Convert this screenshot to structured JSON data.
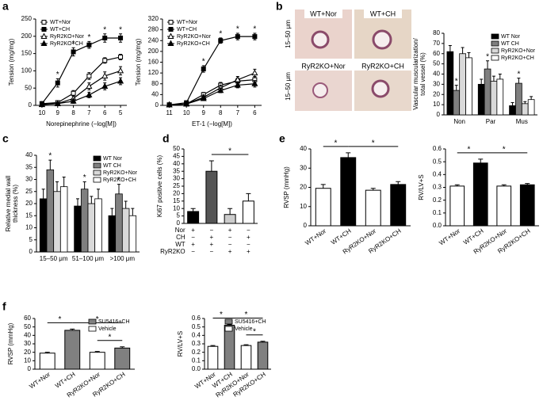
{
  "panel_labels": [
    "a",
    "b",
    "c",
    "d",
    "e",
    "f"
  ],
  "b_images": {
    "labels": [
      "WT+Nor",
      "WT+CH",
      "RyR2KO+Nor",
      "RyR2KO+CH"
    ],
    "row_labels": [
      "15–50 μm",
      "15–50 μm"
    ]
  },
  "chart_data": [
    {
      "type": "line",
      "x": [
        10,
        9,
        8,
        7,
        6,
        5
      ],
      "xlim": [
        10.4,
        4.6
      ],
      "xticks": [
        10,
        9,
        8,
        7,
        6,
        5
      ],
      "xlabel": "Norepinephrine (−log[M])",
      "ylabel": [
        "Tension (mg/mg)"
      ],
      "ylim": [
        0,
        250
      ],
      "yticks": [
        0,
        50,
        100,
        150,
        200,
        250
      ],
      "legend": "upper left",
      "series": [
        {
          "name": "WT+Nor",
          "color": "#000000",
          "marker": "square",
          "marker_fill": "#ffffff",
          "values": [
            5,
            8,
            35,
            85,
            130,
            140
          ],
          "errors": [
            5,
            5,
            8,
            10,
            8,
            8
          ]
        },
        {
          "name": "WT+CH",
          "color": "#000000",
          "marker": "square",
          "marker_fill": "#000000",
          "values": [
            5,
            65,
            155,
            175,
            195,
            195
          ],
          "errors": [
            5,
            12,
            12,
            10,
            12,
            12
          ]
        },
        {
          "name": "RyR2KO+Nor",
          "color": "#000000",
          "marker": "triangle",
          "marker_fill": "#ffffff",
          "values": [
            3,
            5,
            20,
            55,
            85,
            100
          ],
          "errors": [
            3,
            4,
            8,
            10,
            12,
            12
          ]
        },
        {
          "name": "RyR2KO+CH",
          "color": "#000000",
          "marker": "triangle",
          "marker_fill": "#000000",
          "values": [
            2,
            5,
            12,
            30,
            55,
            70
          ],
          "errors": [
            3,
            4,
            6,
            8,
            10,
            10
          ]
        }
      ],
      "significance": [
        {
          "series": 1,
          "index": 1,
          "label": "*"
        },
        {
          "series": 1,
          "index": 2,
          "label": "*"
        },
        {
          "series": 1,
          "index": 3,
          "label": "*"
        },
        {
          "series": 1,
          "index": 4,
          "label": "*"
        },
        {
          "series": 1,
          "index": 5,
          "label": "*"
        }
      ]
    },
    {
      "type": "line",
      "x": [
        11,
        10,
        9,
        8,
        7,
        6
      ],
      "xlim": [
        11.4,
        5.6
      ],
      "xticks": [
        11,
        10,
        9,
        8,
        7,
        6
      ],
      "xlabel": "ET-1 (−log[M])",
      "ylabel": [
        "Tension (mg/mg)"
      ],
      "ylim": [
        0,
        320
      ],
      "yticks": [
        0,
        40,
        80,
        120,
        160,
        200,
        240,
        280,
        320
      ],
      "legend": "upper left",
      "series": [
        {
          "name": "WT+Nor",
          "color": "#000000",
          "marker": "square",
          "marker_fill": "#ffffff",
          "values": [
            2,
            5,
            40,
            75,
            90,
            95
          ],
          "errors": [
            3,
            4,
            8,
            10,
            12,
            12
          ]
        },
        {
          "name": "WT+CH",
          "color": "#000000",
          "marker": "square",
          "marker_fill": "#000000",
          "values": [
            2,
            10,
            135,
            240,
            255,
            255
          ],
          "errors": [
            3,
            5,
            12,
            10,
            12,
            12
          ]
        },
        {
          "name": "RyR2KO+Nor",
          "color": "#000000",
          "marker": "triangle",
          "marker_fill": "#ffffff",
          "values": [
            2,
            5,
            30,
            65,
            95,
            120
          ],
          "errors": [
            3,
            4,
            8,
            10,
            12,
            14
          ]
        },
        {
          "name": "RyR2KO+CH",
          "color": "#000000",
          "marker": "triangle",
          "marker_fill": "#000000",
          "values": [
            2,
            5,
            25,
            55,
            75,
            80
          ],
          "errors": [
            3,
            4,
            6,
            8,
            10,
            12
          ]
        }
      ],
      "significance": [
        {
          "series": 1,
          "index": 2,
          "label": "*"
        },
        {
          "series": 1,
          "index": 3,
          "label": "*"
        },
        {
          "series": 1,
          "index": 4,
          "label": "*"
        },
        {
          "series": 1,
          "index": 5,
          "label": "*"
        }
      ]
    },
    {
      "type": "bar",
      "categories": [
        "Non",
        "Par",
        "Mus"
      ],
      "ylabel": [
        "Vascular muscularization/",
        "total vessel (%)"
      ],
      "ylim": [
        0,
        80
      ],
      "yticks": [
        0,
        10,
        20,
        30,
        40,
        50,
        60,
        70,
        80
      ],
      "legend": "upper right",
      "series": [
        {
          "name": "WT Nor",
          "color": "#000000",
          "values": [
            62,
            30,
            9
          ],
          "errors": [
            6,
            5,
            3
          ]
        },
        {
          "name": "WT CH",
          "color": "#7f7f7f",
          "values": [
            24,
            45,
            31
          ],
          "errors": [
            5,
            8,
            5
          ]
        },
        {
          "name": "RyR2KO+Nor",
          "color": "#d9d9d9",
          "values": [
            60,
            33,
            11
          ],
          "errors": [
            6,
            5,
            2
          ]
        },
        {
          "name": "RyR2KO+CH",
          "color": "#ffffff",
          "values": [
            56,
            35,
            15
          ],
          "errors": [
            5,
            5,
            3
          ]
        }
      ],
      "significance": [
        {
          "series": 1,
          "index": 0,
          "label": "*"
        },
        {
          "series": 1,
          "index": 1,
          "label": "*"
        },
        {
          "series": 1,
          "index": 2,
          "label": "*"
        }
      ]
    },
    {
      "type": "bar",
      "categories": [
        "15–50 μm",
        "51–100 μm",
        ">100 μm"
      ],
      "ylabel": [
        "Relative medial wall",
        "thickness (%)"
      ],
      "ylim": [
        0,
        40
      ],
      "yticks": [
        0,
        5,
        10,
        15,
        20,
        25,
        30,
        35,
        40
      ],
      "legend": "upper right",
      "series": [
        {
          "name": "WT Nor",
          "color": "#000000",
          "values": [
            22,
            19,
            15
          ],
          "errors": [
            4,
            3,
            3
          ]
        },
        {
          "name": "WT CH",
          "color": "#7f7f7f",
          "values": [
            34,
            26,
            24
          ],
          "errors": [
            4,
            3,
            4
          ]
        },
        {
          "name": "RyR2KO+Nor",
          "color": "#d9d9d9",
          "values": [
            25,
            20,
            18
          ],
          "errors": [
            4,
            3,
            3
          ]
        },
        {
          "name": "RyR2KO+CH",
          "color": "#ffffff",
          "values": [
            27,
            22,
            15
          ],
          "errors": [
            4,
            4,
            3
          ]
        }
      ],
      "significance": [
        {
          "series": 1,
          "index": 0,
          "label": "*"
        },
        {
          "series": 1,
          "index": 1,
          "label": "*"
        },
        {
          "series": 1,
          "index": 2,
          "label": "*"
        }
      ]
    },
    {
      "type": "bar",
      "values": [
        8,
        35,
        6,
        15
      ],
      "errors": [
        2,
        7,
        4,
        5
      ],
      "colors": [
        "#000000",
        "#555555",
        "#cccccc",
        "#ffffff"
      ],
      "ylabel": [
        "Ki67 positive cells (%)"
      ],
      "ylim": [
        0,
        50
      ],
      "yticks": [
        0,
        5,
        10,
        15,
        20,
        25,
        30,
        35,
        40,
        45,
        50
      ],
      "table": [
        {
          "name": "Nor",
          "cells": [
            "+",
            "−",
            "+",
            "−"
          ]
        },
        {
          "name": "CH",
          "cells": [
            "−",
            "+",
            "−",
            "+"
          ]
        },
        {
          "name": "WT",
          "cells": [
            "+",
            "+",
            "−",
            "−"
          ]
        },
        {
          "name": "RyR2KO",
          "cells": [
            "−",
            "−",
            "+",
            "+"
          ]
        }
      ],
      "comparisons": [
        {
          "from": 1,
          "to": 3,
          "label": "*"
        }
      ]
    },
    {
      "type": "bar",
      "categories": [
        "WT+Nor",
        "WT+CH",
        "RyR2KO+Nor",
        "RyR2KO+CH"
      ],
      "values": [
        19.5,
        35.5,
        18.5,
        21.5
      ],
      "errors": [
        2,
        2.5,
        1,
        1.5
      ],
      "colors": [
        "#ffffff",
        "#000000",
        "#ffffff",
        "#000000"
      ],
      "ylabel": [
        "RVSP (mmHg)"
      ],
      "ylim": [
        0,
        40
      ],
      "yticks": [
        0,
        10,
        20,
        30,
        40
      ],
      "comparisons": [
        {
          "from": 0,
          "to": 1,
          "label": "*"
        },
        {
          "from": 1,
          "to": 3,
          "label": "*"
        }
      ]
    },
    {
      "type": "bar",
      "categories": [
        "WT+Nor",
        "WT+CH",
        "RyR2KO+Nor",
        "RyR2KO+CH"
      ],
      "values": [
        0.31,
        0.49,
        0.31,
        0.32
      ],
      "errors": [
        0.01,
        0.03,
        0.01,
        0.01
      ],
      "colors": [
        "#ffffff",
        "#000000",
        "#ffffff",
        "#000000"
      ],
      "ylabel": [
        "RV/LV+S"
      ],
      "ylim": [
        0,
        0.6
      ],
      "yticks": [
        {
          "value": 0,
          "label": "0.0"
        },
        0.1,
        0.2,
        0.3,
        0.4,
        0.5,
        0.6
      ],
      "comparisons": [
        {
          "from": 0,
          "to": 1,
          "label": "*"
        },
        {
          "from": 1,
          "to": 3,
          "label": "*"
        }
      ]
    },
    {
      "type": "bar",
      "categories": [
        "WT+Nor",
        "WT+CH",
        "RyR2KO+Nor",
        "RyR2KO+CH"
      ],
      "values": [
        19,
        46,
        20,
        25
      ],
      "errors": [
        1,
        1.5,
        1,
        1.5
      ],
      "colors": [
        "#ffffff",
        "#808080",
        "#ffffff",
        "#808080"
      ],
      "ylabel": [
        "RVSP (mmHg)"
      ],
      "ylim": [
        0,
        60
      ],
      "yticks": [
        0,
        10,
        20,
        30,
        40,
        50,
        60
      ],
      "legend": "upper right",
      "legend_entries": [
        {
          "name": "SU5416+CH",
          "color": "#808080"
        },
        {
          "name": "Vehicle",
          "color": "#ffffff"
        }
      ],
      "comparisons": [
        {
          "from": 0,
          "to": 1,
          "label": "*"
        },
        {
          "from": 1,
          "to": 3,
          "label": "*"
        },
        {
          "from": 2,
          "to": 3,
          "label": "*"
        }
      ]
    },
    {
      "type": "bar",
      "categories": [
        "WT+Nor",
        "WT+CH",
        "RyR2KO+Nor",
        "RyR2KO+CH"
      ],
      "values": [
        0.27,
        0.52,
        0.28,
        0.32
      ],
      "errors": [
        0.01,
        0.01,
        0.01,
        0.01
      ],
      "colors": [
        "#ffffff",
        "#808080",
        "#ffffff",
        "#808080"
      ],
      "ylabel": [
        "RV/LV+S"
      ],
      "ylim": [
        0,
        0.6
      ],
      "yticks": [
        {
          "value": 0,
          "label": "0.0"
        },
        0.1,
        0.2,
        0.3,
        0.4,
        0.5,
        0.6
      ],
      "legend": "upper right",
      "legend_entries": [
        {
          "name": "SU5416+CH",
          "color": "#808080"
        },
        {
          "name": "Vehicle",
          "color": "#ffffff"
        }
      ],
      "comparisons": [
        {
          "from": 0,
          "to": 1,
          "label": "*"
        },
        {
          "from": 1,
          "to": 3,
          "label": "*"
        },
        {
          "from": 2,
          "to": 3,
          "label": "*"
        }
      ]
    }
  ]
}
